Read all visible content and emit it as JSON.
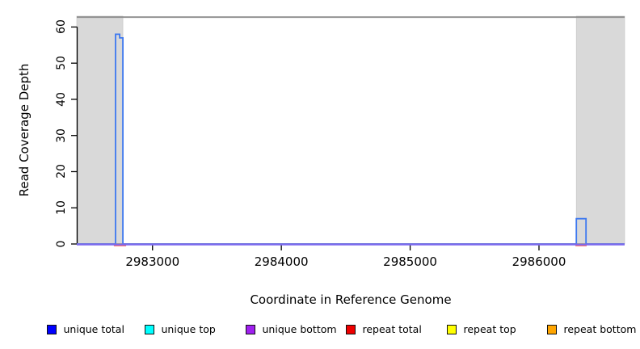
{
  "chart_data": {
    "type": "line",
    "subtype": "step-coverage",
    "title": "",
    "xlabel": "Coordinate in Reference Genome",
    "ylabel": "Read Coverage Depth",
    "xlim": [
      2982412,
      2986665
    ],
    "ylim": [
      0,
      63
    ],
    "x_ticks": [
      2983000,
      2984000,
      2985000,
      2986000
    ],
    "y_ticks": [
      0,
      10,
      20,
      30,
      40,
      50,
      60
    ],
    "grid": false,
    "frame_color": "#8C8C8C",
    "shaded_regions": [
      {
        "name": "left-shaded-region",
        "x0": 2982412,
        "x1": 2982770,
        "color": "#D9D9D9"
      },
      {
        "name": "right-shaded-region",
        "x0": 2986290,
        "x1": 2986665,
        "color": "#D9D9D9"
      }
    ],
    "series": [
      {
        "name": "unique top",
        "color": "#00FFFF",
        "points": [
          [
            2982412,
            0
          ],
          [
            2986665,
            0
          ]
        ]
      },
      {
        "name": "repeat top",
        "color": "#FFFF00",
        "points": [
          [
            2982412,
            0
          ],
          [
            2986665,
            0
          ]
        ]
      },
      {
        "name": "repeat bottom",
        "color": "#FFA500",
        "points": [
          [
            2982412,
            0
          ],
          [
            2986665,
            0
          ]
        ]
      },
      {
        "name": "repeat total",
        "color": "#FF0000",
        "draw_color": "#FF5050",
        "segments": [
          [
            [
              2982700,
              0
            ],
            [
              2982795,
              0
            ]
          ],
          [
            [
              2986283,
              0
            ],
            [
              2986370,
              0
            ]
          ]
        ]
      },
      {
        "name": "unique total",
        "color": "#0000FF",
        "draw_color": "#3D78F0",
        "points": [
          [
            2982412,
            0
          ],
          [
            2982713,
            0
          ],
          [
            2982713,
            58
          ],
          [
            2982745,
            58
          ],
          [
            2982745,
            57
          ],
          [
            2982770,
            57
          ],
          [
            2982770,
            0
          ],
          [
            2986290,
            0
          ],
          [
            2986290,
            7
          ],
          [
            2986365,
            7
          ],
          [
            2986365,
            0
          ],
          [
            2986665,
            0
          ]
        ]
      },
      {
        "name": "unique bottom",
        "color": "#A020F0",
        "draw_color": "#7B68EE",
        "points": [
          [
            2982412,
            0
          ],
          [
            2986665,
            0
          ]
        ]
      }
    ],
    "legend": [
      {
        "label": "unique total",
        "color": "#0000FF"
      },
      {
        "label": "unique top",
        "color": "#00FFFF"
      },
      {
        "label": "unique bottom",
        "color": "#A020F0"
      },
      {
        "label": "repeat total",
        "color": "#EE0000"
      },
      {
        "label": "repeat top",
        "color": "#FFFF00"
      },
      {
        "label": "repeat bottom",
        "color": "#FFA500"
      }
    ],
    "legend_position": "bottom"
  }
}
